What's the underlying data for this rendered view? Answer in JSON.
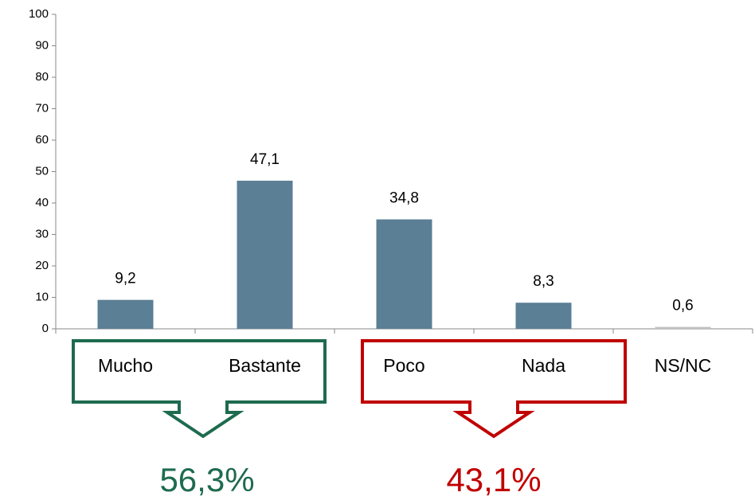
{
  "chart_data": {
    "type": "bar",
    "categories": [
      "Mucho",
      "Bastante",
      "Poco",
      "Nada",
      "NS/NC"
    ],
    "values": [
      9.2,
      47.1,
      34.8,
      8.3,
      0.6
    ],
    "value_labels": [
      "9,2",
      "47,1",
      "34,8",
      "8,3",
      "0,6"
    ],
    "colors": [
      "#5b7f95",
      "#5b7f95",
      "#5b7f95",
      "#5b7f95",
      "#c0c0c0"
    ],
    "ylim": [
      0,
      100
    ],
    "yticks": [
      0,
      10,
      20,
      30,
      40,
      50,
      60,
      70,
      80,
      90,
      100
    ],
    "grid": false,
    "annotations": [
      {
        "text": "56,3%",
        "color": "#1e6b4f"
      },
      {
        "text": "43,1%",
        "color": "#c00000"
      }
    ]
  }
}
